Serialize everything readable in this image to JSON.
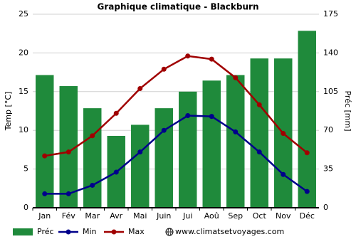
{
  "chart_data": {
    "type": "bar-line",
    "title": "Graphique climatique - Blackburn",
    "ylabel": "Temp [°C]",
    "y2label": "Préc [mm]",
    "categories": [
      "Jan",
      "Fév",
      "Mar",
      "Avr",
      "Mai",
      "Juin",
      "Jui",
      "Aoû",
      "Sep",
      "Oct",
      "Nov",
      "Déc"
    ],
    "series": [
      {
        "name": "Préc",
        "color": "#1f8a3b",
        "type": "bar",
        "axis": "y2",
        "values": [
          120,
          110,
          90,
          65,
          75,
          90,
          105,
          115,
          120,
          135,
          135,
          160
        ]
      },
      {
        "name": "Min",
        "color": "#00008b",
        "type": "line",
        "values": [
          1.8,
          1.8,
          2.9,
          4.6,
          7.2,
          10.0,
          11.9,
          11.8,
          9.8,
          7.2,
          4.3,
          2.1
        ]
      },
      {
        "name": "Max",
        "color": "#a00000",
        "type": "line",
        "values": [
          6.7,
          7.2,
          9.3,
          12.2,
          15.4,
          17.9,
          19.6,
          19.2,
          16.8,
          13.3,
          9.6,
          7.1
        ]
      }
    ],
    "ylim": [
      0,
      25
    ],
    "yticks": [
      0,
      5,
      10,
      15,
      20,
      25
    ],
    "y2lim": [
      0,
      175
    ],
    "y2ticks": [
      0,
      35,
      70,
      105,
      140,
      175
    ],
    "grid": true,
    "legend": "bottom",
    "source": "www.climatsetvoyages.com"
  }
}
